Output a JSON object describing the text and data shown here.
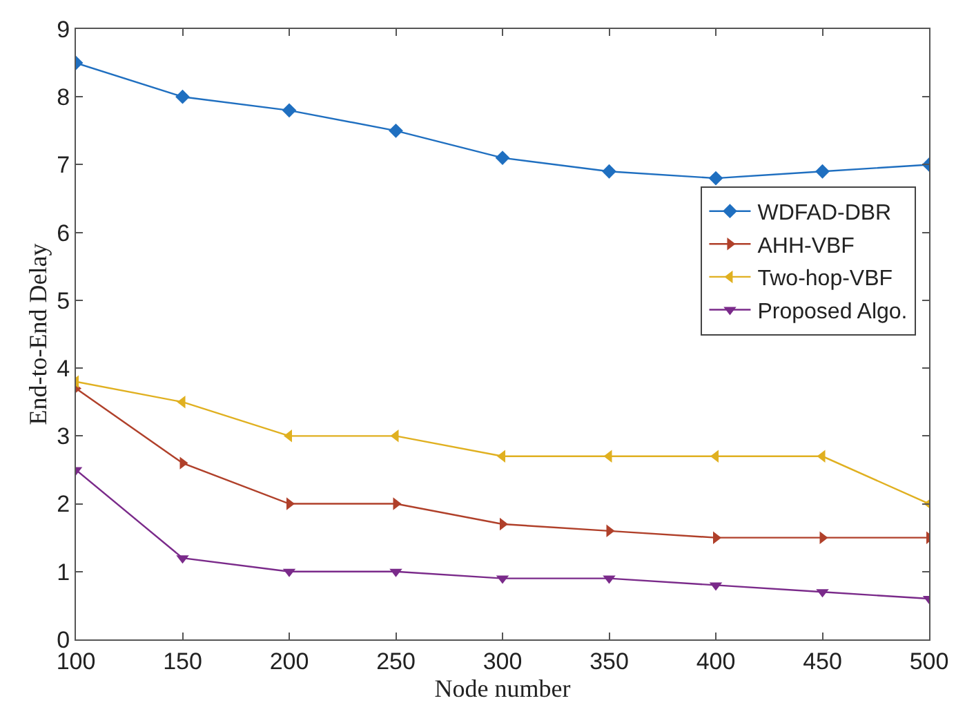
{
  "chart_data": {
    "type": "line",
    "xlabel": "Node number",
    "ylabel": "End-to-End Delay",
    "x": [
      100,
      150,
      200,
      250,
      300,
      350,
      400,
      450,
      500
    ],
    "xlim": [
      100,
      500
    ],
    "xticks": [
      100,
      150,
      200,
      250,
      300,
      350,
      400,
      450,
      500
    ],
    "ylim": [
      0,
      9
    ],
    "yticks": [
      0,
      1,
      2,
      3,
      4,
      5,
      6,
      7,
      8,
      9
    ],
    "legend": "right",
    "series": [
      {
        "name": "WDFAD-DBR",
        "color": "#1f6fc0",
        "marker": "diamond",
        "values": [
          8.5,
          8.0,
          7.8,
          7.5,
          7.1,
          6.9,
          6.8,
          6.9,
          7.0
        ]
      },
      {
        "name": "AHH-VBF",
        "color": "#b0402a",
        "marker": "triangle-right",
        "values": [
          3.7,
          2.6,
          2.0,
          2.0,
          1.7,
          1.6,
          1.5,
          1.5,
          1.5
        ]
      },
      {
        "name": "Two-hop-VBF",
        "color": "#e0b020",
        "marker": "triangle-left",
        "values": [
          3.8,
          3.5,
          3.0,
          3.0,
          2.7,
          2.7,
          2.7,
          2.7,
          2.0
        ]
      },
      {
        "name": "Proposed Algo.",
        "color": "#7a2a8a",
        "marker": "triangle-down",
        "values": [
          2.5,
          1.2,
          1.0,
          1.0,
          0.9,
          0.9,
          0.8,
          0.7,
          0.6
        ]
      }
    ]
  }
}
